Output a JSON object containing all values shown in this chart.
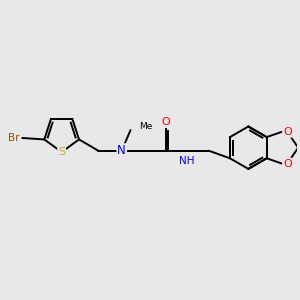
{
  "bg_color": "#e8e8e8",
  "atom_colors": {
    "Br": "#964B00",
    "S": "#DAA520",
    "N": "#0000FF",
    "O": "#FF0000",
    "C": "#000000",
    "H": "#000000"
  },
  "bond_color": "#000000",
  "figsize": [
    3.0,
    3.0
  ],
  "dpi": 100,
  "lw": 1.4
}
